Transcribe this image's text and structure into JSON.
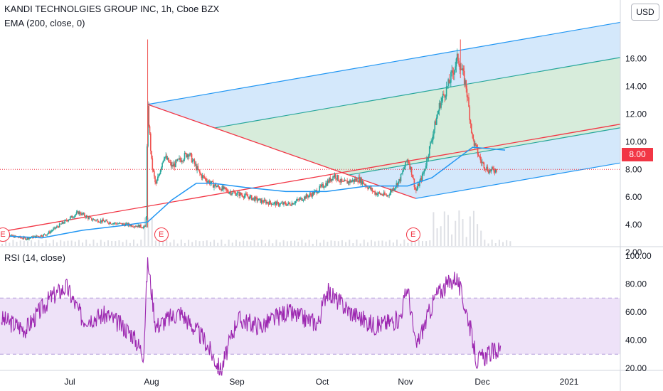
{
  "header": {
    "title": "KANDI TECHNOLGIES GROUP INC, 1h, Cboe BZX",
    "ema_label": "EMA (200, close, 0)",
    "rsi_label": "RSI (14, close)"
  },
  "currency_label": "USD",
  "last_price_label": "8.00",
  "earnings_marker_label": "E",
  "colors": {
    "up": "#26a69a",
    "down": "#ef5350",
    "ema": "#2196f3",
    "pitchfork_median": "#f23645",
    "pitchfork_inner": "#26a69a",
    "pitchfork_outer": "#2196f3",
    "rsi": "#9c27b0",
    "rsi_band": "#e7d6f5"
  },
  "chart_data": [
    {
      "type": "candlestick",
      "title": "KANDI TECHNOLGIES GROUP INC, 1h, Cboe BZX",
      "ylim": [
        1.6,
        17.8
      ],
      "yticks": [
        "2.00",
        "4.00",
        "6.00",
        "8.00",
        "10.00",
        "12.00",
        "14.00",
        "16.00"
      ],
      "xticks": [
        "Jul",
        "Aug",
        "Sep",
        "Oct",
        "Nov",
        "Dec",
        "2021"
      ],
      "last_price": 8.0,
      "price_path": [
        {
          "t": 0.0,
          "p": 3.3
        },
        {
          "t": 0.3,
          "p": 3.0
        },
        {
          "t": 0.55,
          "p": 3.3
        },
        {
          "t": 0.8,
          "p": 4.3
        },
        {
          "t": 0.95,
          "p": 4.9
        },
        {
          "t": 1.1,
          "p": 4.4
        },
        {
          "t": 1.4,
          "p": 4.1
        },
        {
          "t": 1.7,
          "p": 3.9
        },
        {
          "t": 1.78,
          "p": 3.8
        },
        {
          "t": 1.8,
          "p": 12.6
        },
        {
          "t": 1.85,
          "p": 8.4
        },
        {
          "t": 1.9,
          "p": 6.8
        },
        {
          "t": 2.0,
          "p": 9.0
        },
        {
          "t": 2.1,
          "p": 8.2
        },
        {
          "t": 2.3,
          "p": 9.2
        },
        {
          "t": 2.45,
          "p": 7.6
        },
        {
          "t": 2.6,
          "p": 6.9
        },
        {
          "t": 2.8,
          "p": 6.4
        },
        {
          "t": 3.0,
          "p": 6.1
        },
        {
          "t": 3.2,
          "p": 5.7
        },
        {
          "t": 3.4,
          "p": 5.5
        },
        {
          "t": 3.55,
          "p": 5.5
        },
        {
          "t": 3.7,
          "p": 5.9
        },
        {
          "t": 3.85,
          "p": 6.3
        },
        {
          "t": 4.0,
          "p": 7.0
        },
        {
          "t": 4.1,
          "p": 7.6
        },
        {
          "t": 4.2,
          "p": 7.0
        },
        {
          "t": 4.4,
          "p": 7.3
        },
        {
          "t": 4.6,
          "p": 6.3
        },
        {
          "t": 4.75,
          "p": 6.1
        },
        {
          "t": 4.9,
          "p": 7.2
        },
        {
          "t": 5.0,
          "p": 8.8
        },
        {
          "t": 5.05,
          "p": 7.8
        },
        {
          "t": 5.1,
          "p": 6.4
        },
        {
          "t": 5.2,
          "p": 7.8
        },
        {
          "t": 5.3,
          "p": 10.3
        },
        {
          "t": 5.4,
          "p": 12.8
        },
        {
          "t": 5.5,
          "p": 14.1
        },
        {
          "t": 5.62,
          "p": 16.1
        },
        {
          "t": 5.72,
          "p": 14.0
        },
        {
          "t": 5.8,
          "p": 10.2
        },
        {
          "t": 5.9,
          "p": 8.6
        },
        {
          "t": 6.0,
          "p": 7.9
        },
        {
          "t": 6.1,
          "p": 8.0
        }
      ],
      "ema200_path": [
        {
          "t": 0.0,
          "p": 3.2
        },
        {
          "t": 0.5,
          "p": 3.05
        },
        {
          "t": 1.0,
          "p": 3.6
        },
        {
          "t": 1.5,
          "p": 3.95
        },
        {
          "t": 1.8,
          "p": 4.2
        },
        {
          "t": 2.1,
          "p": 5.8
        },
        {
          "t": 2.4,
          "p": 7.0
        },
        {
          "t": 2.6,
          "p": 7.0
        },
        {
          "t": 3.0,
          "p": 6.7
        },
        {
          "t": 3.5,
          "p": 6.4
        },
        {
          "t": 4.0,
          "p": 6.4
        },
        {
          "t": 4.5,
          "p": 6.8
        },
        {
          "t": 5.0,
          "p": 6.8
        },
        {
          "t": 5.3,
          "p": 7.4
        },
        {
          "t": 5.55,
          "p": 8.5
        },
        {
          "t": 5.8,
          "p": 9.6
        },
        {
          "t": 6.2,
          "p": 9.4
        }
      ],
      "annotations": [
        "E",
        "E",
        "E"
      ],
      "earnings_dates_t": [
        0.0,
        1.95,
        5.05
      ],
      "pitchfork": {
        "pivot_a": {
          "t": 1.8,
          "p": 12.7
        },
        "pivot_b": {
          "t": 5.1,
          "p": 5.9
        },
        "handle_start": {
          "t": 0.0,
          "p": 3.5
        },
        "slope_per_t": 1.02
      }
    },
    {
      "type": "line",
      "title": "RSI (14, close)",
      "ylim": [
        12,
        104
      ],
      "yticks": [
        "20.00",
        "40.00",
        "60.00",
        "80.00",
        "100.00"
      ],
      "bands": {
        "upper": 70,
        "lower": 30
      },
      "rsi_path": [
        {
          "t": 0.0,
          "v": 55
        },
        {
          "t": 0.3,
          "v": 48
        },
        {
          "t": 0.6,
          "v": 70
        },
        {
          "t": 0.8,
          "v": 78
        },
        {
          "t": 1.0,
          "v": 55
        },
        {
          "t": 1.3,
          "v": 58
        },
        {
          "t": 1.6,
          "v": 45
        },
        {
          "t": 1.75,
          "v": 30
        },
        {
          "t": 1.8,
          "v": 97
        },
        {
          "t": 1.9,
          "v": 50
        },
        {
          "t": 2.2,
          "v": 60
        },
        {
          "t": 2.5,
          "v": 40
        },
        {
          "t": 2.7,
          "v": 18
        },
        {
          "t": 2.9,
          "v": 55
        },
        {
          "t": 3.2,
          "v": 50
        },
        {
          "t": 3.5,
          "v": 60
        },
        {
          "t": 3.9,
          "v": 52
        },
        {
          "t": 4.0,
          "v": 75
        },
        {
          "t": 4.3,
          "v": 60
        },
        {
          "t": 4.6,
          "v": 50
        },
        {
          "t": 4.9,
          "v": 55
        },
        {
          "t": 5.0,
          "v": 78
        },
        {
          "t": 5.1,
          "v": 35
        },
        {
          "t": 5.35,
          "v": 72
        },
        {
          "t": 5.6,
          "v": 85
        },
        {
          "t": 5.75,
          "v": 55
        },
        {
          "t": 5.85,
          "v": 25
        },
        {
          "t": 6.0,
          "v": 30
        },
        {
          "t": 6.15,
          "v": 34
        }
      ]
    }
  ]
}
